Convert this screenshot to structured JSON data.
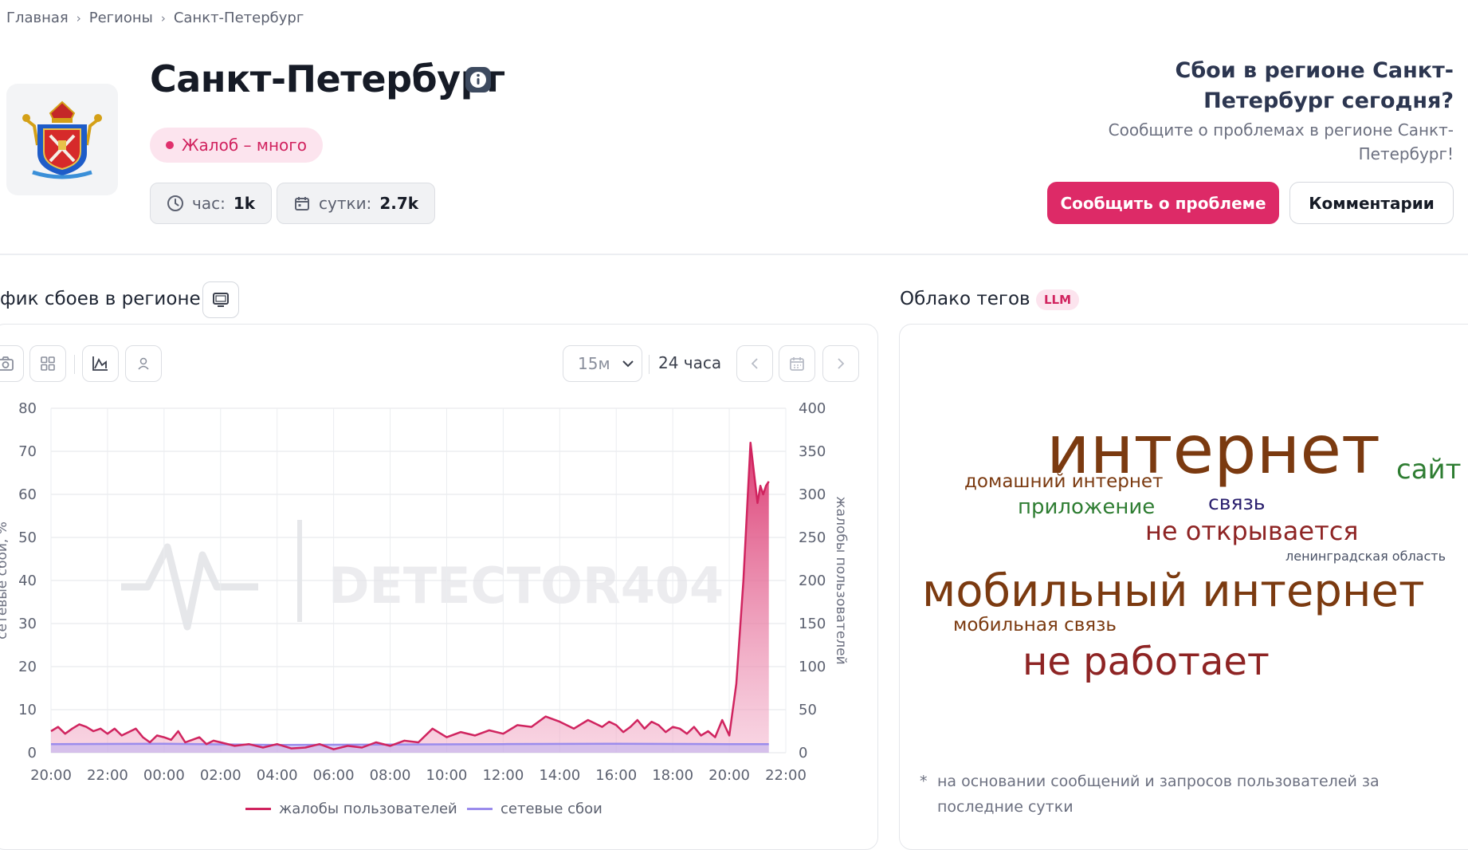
{
  "breadcrumb": {
    "items": [
      "Главная",
      "Регионы",
      "Санкт-Петербург"
    ]
  },
  "header": {
    "title": "Санкт-Петербург",
    "status_badge": "Жалоб – много",
    "stats": [
      {
        "label": "час:",
        "value": "1k",
        "icon": "clock-icon"
      },
      {
        "label": "сутки:",
        "value": "2.7k",
        "icon": "calendar-icon"
      }
    ]
  },
  "report_panel": {
    "heading": "Сбои в регионе Санкт-Петербург сегодня?",
    "subtext": "Сообщите о проблемах в регионе Санкт-Петербург!",
    "report_button": "Сообщить о проблеме",
    "comments_button": "Комментарии"
  },
  "chart_section": {
    "title": "фик сбоев в регионе",
    "interval_select": "15м",
    "range_label": "24 часа",
    "watermark": "DETECTOR404"
  },
  "cloud_section": {
    "title": "Облако тегов",
    "badge": "LLM",
    "footnote": "на основании сообщений и запросов пользователей за последние сутки",
    "footnote_mark": "*",
    "words": [
      {
        "text": "интернет",
        "color": "#7b3a10"
      },
      {
        "text": "сайт",
        "color": "#2e7d32"
      },
      {
        "text": "домашний интернет",
        "color": "#7b3a10"
      },
      {
        "text": "связь",
        "color": "#2a1f6e"
      },
      {
        "text": "приложение",
        "color": "#2e7d32"
      },
      {
        "text": "не открывается",
        "color": "#8e2424"
      },
      {
        "text": "ленинградская область",
        "color": "#4a5266"
      },
      {
        "text": "мобильный интернет",
        "color": "#7b3a10"
      },
      {
        "text": "мобильная связь",
        "color": "#7b3a10"
      },
      {
        "text": "не работает",
        "color": "#8e2424"
      }
    ]
  },
  "chart_data": {
    "type": "area",
    "x_ticks": [
      "20:00",
      "22:00",
      "00:00",
      "02:00",
      "04:00",
      "06:00",
      "08:00",
      "10:00",
      "12:00",
      "14:00",
      "16:00",
      "18:00",
      "20:00",
      "22:00"
    ],
    "y_left": {
      "label": "сетевые сбои, %",
      "ticks": [
        0,
        10,
        20,
        30,
        40,
        50,
        60,
        70,
        80
      ],
      "range": [
        0,
        80
      ]
    },
    "y_right": {
      "label": "жалобы пользователей",
      "ticks": [
        0,
        50,
        100,
        150,
        200,
        250,
        300,
        350,
        400
      ],
      "range": [
        0,
        400
      ]
    },
    "grid": true,
    "legend_position": "bottom",
    "series": [
      {
        "name": "жалобы пользователей",
        "axis": "right",
        "color": "#d0245f",
        "x_hours": [
          0,
          0.25,
          0.5,
          0.75,
          1,
          1.25,
          1.5,
          1.75,
          2,
          2.25,
          2.5,
          2.75,
          3,
          3.25,
          3.5,
          3.75,
          4,
          4.25,
          4.5,
          4.75,
          5,
          5.25,
          5.5,
          5.75,
          6,
          6.5,
          7,
          7.5,
          8,
          8.5,
          9,
          9.5,
          10,
          10.5,
          11,
          11.5,
          12,
          12.5,
          13,
          13.5,
          14,
          14.5,
          15,
          15.5,
          16,
          16.5,
          17,
          17.5,
          18,
          18.5,
          19,
          19.25,
          19.5,
          19.75,
          20,
          20.25,
          20.5,
          20.75,
          21,
          21.25,
          21.5,
          21.75,
          22,
          22.25,
          22.5,
          22.75,
          23,
          23.25,
          23.5,
          23.75,
          24,
          24.25,
          24.5,
          24.75,
          25,
          25.1,
          25.2,
          25.3,
          25.4
        ],
        "values": [
          25,
          30,
          22,
          28,
          33,
          30,
          25,
          28,
          22,
          28,
          20,
          24,
          28,
          18,
          12,
          20,
          18,
          15,
          25,
          12,
          15,
          18,
          10,
          14,
          12,
          8,
          10,
          6,
          10,
          5,
          6,
          10,
          4,
          8,
          6,
          12,
          8,
          14,
          12,
          28,
          18,
          24,
          20,
          26,
          22,
          32,
          30,
          42,
          36,
          28,
          38,
          34,
          30,
          36,
          32,
          24,
          30,
          38,
          28,
          36,
          32,
          24,
          30,
          28,
          22,
          30,
          20,
          25,
          18,
          38,
          20,
          80,
          200,
          360,
          290,
          310,
          300,
          310,
          315
        ]
      },
      {
        "name": "сетевые сбои",
        "axis": "left",
        "color": "#9b8cec",
        "x_hours": [
          0,
          4,
          8,
          12,
          16,
          20,
          24,
          25.4
        ],
        "values": [
          2,
          2.1,
          1.8,
          1.9,
          2.0,
          2.1,
          2.0,
          2.0
        ]
      }
    ]
  }
}
